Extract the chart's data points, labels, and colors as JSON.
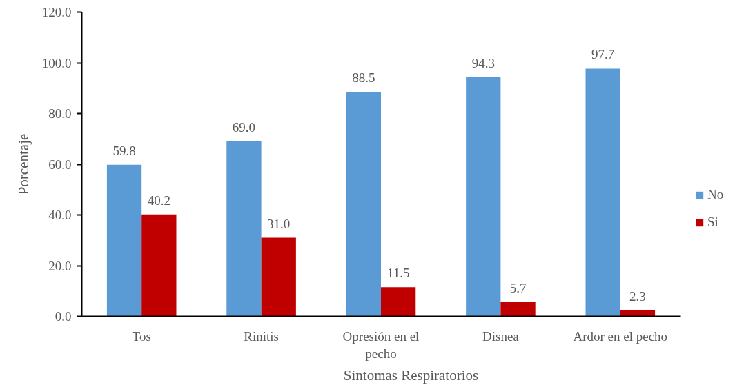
{
  "chart_data": {
    "type": "bar",
    "xlabel": "Síntomas Respiratorios",
    "ylabel": "Porcentaje",
    "categories": [
      "Tos",
      "Rinitis",
      "Opresión en el pecho",
      "Disnea",
      "Ardor en el pecho"
    ],
    "series": [
      {
        "name": "No",
        "color": "#5b9bd5",
        "values": [
          59.8,
          69.0,
          88.5,
          94.3,
          97.7
        ],
        "value_labels": [
          "59.8",
          "69.0",
          "88.5",
          "94.3",
          "97.7"
        ]
      },
      {
        "name": "Si",
        "color": "#c00000",
        "values": [
          40.2,
          31.0,
          11.5,
          5.7,
          2.3
        ],
        "value_labels": [
          "40.2",
          "31.0",
          "11.5",
          "5.7",
          "2.3"
        ]
      }
    ],
    "ylim": [
      0,
      120
    ],
    "yticks": [
      {
        "value": 0,
        "label": "0.0"
      },
      {
        "value": 20,
        "label": "20.0"
      },
      {
        "value": 40,
        "label": "40.0"
      },
      {
        "value": 60,
        "label": "60.0"
      },
      {
        "value": 80,
        "label": "80.0"
      },
      {
        "value": 100,
        "label": "100.0"
      },
      {
        "value": 120,
        "label": "120.0"
      }
    ],
    "legend": "right"
  }
}
